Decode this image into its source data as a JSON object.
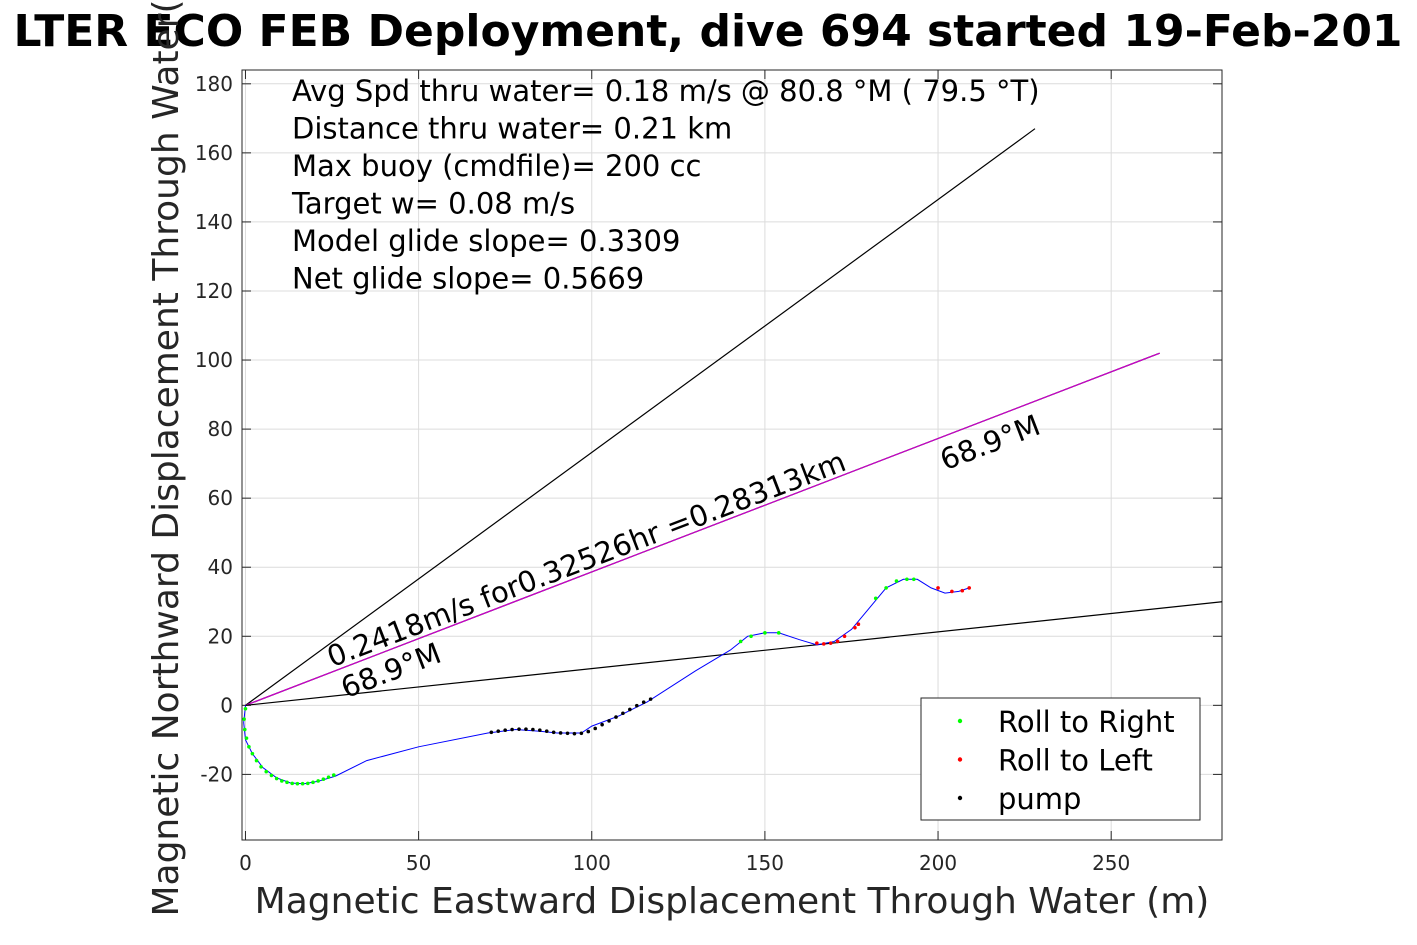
{
  "chart_data": {
    "type": "scatter",
    "title": "LTER ECO FEB Deployment, dive 694 started 19-Feb-201",
    "xlabel": "Magnetic Eastward Displacement Through Water (m)",
    "ylabel": "Magnetic Northward Displacement Through Water(",
    "xlim": [
      -1,
      282
    ],
    "ylim": [
      -39,
      184
    ],
    "x_ticks": [
      0,
      50,
      100,
      150,
      200,
      250
    ],
    "x_tick_labels": [
      "0",
      "50",
      "100",
      "150",
      "200",
      "250"
    ],
    "y_ticks": [
      -20,
      0,
      20,
      40,
      60,
      80,
      100,
      120,
      140,
      160,
      180
    ],
    "y_tick_labels": [
      "-20",
      "0",
      "20",
      "40",
      "60",
      "80",
      "100",
      "120",
      "140",
      "160",
      "180"
    ],
    "grid": true,
    "legend_position": "bottom-right",
    "info_text": [
      "Avg Spd thru water=  0.18 m/s @  80.8 °M ( 79.5 °T)",
      "Distance thru water=  0.21 km",
      "Max buoy (cmdfile)= 200 cc",
      "Target w= 0.08 m/s",
      "Model glide slope= 0.3309",
      "Net glide slope= 0.5669"
    ],
    "reference_lines": [
      {
        "x": [
          0,
          228
        ],
        "y": [
          0,
          167
        ],
        "color": "#000000"
      },
      {
        "x": [
          0,
          264
        ],
        "y": [
          0,
          102
        ],
        "color": "#000000"
      },
      {
        "x": [
          0,
          264
        ],
        "y": [
          0,
          102
        ],
        "color": "#cc00cc"
      },
      {
        "x": [
          0,
          282
        ],
        "y": [
          0,
          30
        ],
        "color": "#000000"
      }
    ],
    "annotations": [
      {
        "text": "0.2418m/s for0.32526hr =0.28313km",
        "x": 25,
        "y": 11,
        "angle_deg": -21
      },
      {
        "text": "68.9°M",
        "x": 29,
        "y": 2,
        "angle_deg": -21
      },
      {
        "text": "68.9°M",
        "x": 202,
        "y": 68,
        "angle_deg": -21
      }
    ],
    "track": {
      "color": "#0000ff",
      "x": [
        0,
        -0.5,
        0,
        2,
        5,
        9,
        13,
        17,
        21,
        26,
        35,
        50,
        70,
        78,
        85,
        90,
        97,
        100,
        108,
        116,
        130,
        140,
        145,
        150,
        154,
        160,
        165,
        170,
        175,
        180,
        185,
        190,
        194,
        198,
        202,
        206,
        209
      ],
      "y": [
        0,
        -5,
        -10,
        -14,
        -18,
        -21,
        -22.5,
        -22.7,
        -22,
        -20.5,
        -16,
        -12,
        -8,
        -7,
        -7.5,
        -8,
        -8,
        -6,
        -3,
        1,
        10,
        16,
        20,
        21,
        21,
        19,
        17.5,
        18.5,
        22,
        28,
        34,
        36.5,
        36.5,
        34,
        32.5,
        33,
        34
      ]
    },
    "series": [
      {
        "name": "Roll to Right",
        "color": "#00ff00",
        "x": [
          0,
          -0.4,
          -0.2,
          0.3,
          1,
          2,
          3.2,
          4.5,
          6,
          7.5,
          9,
          10.5,
          12,
          13.5,
          15,
          16.5,
          18,
          19.5,
          21,
          22.5,
          24,
          25.5,
          143,
          146,
          150,
          154,
          182,
          185,
          188,
          191,
          193
        ],
        "y": [
          -1,
          -4,
          -7,
          -9.5,
          -12,
          -14,
          -16,
          -17.8,
          -19.2,
          -20.3,
          -21.2,
          -21.9,
          -22.3,
          -22.6,
          -22.7,
          -22.7,
          -22.6,
          -22.3,
          -21.9,
          -21.4,
          -20.8,
          -20.2,
          18.5,
          20,
          21,
          21,
          31,
          34,
          36,
          36.5,
          36.5
        ]
      },
      {
        "name": "Roll to Left",
        "color": "#ff0000",
        "x": [
          165,
          167,
          169,
          171,
          173,
          176,
          177,
          200,
          204,
          207,
          209
        ],
        "y": [
          18,
          17.8,
          18,
          18.5,
          20,
          22.5,
          23.5,
          34,
          33,
          33.2,
          34
        ]
      },
      {
        "name": "pump",
        "color": "#000000",
        "x": [
          71,
          73,
          75,
          77,
          79,
          81,
          83,
          85,
          87,
          89,
          91,
          93,
          95,
          97,
          99,
          101,
          103,
          105,
          107,
          109,
          111,
          113,
          115,
          117
        ],
        "y": [
          -7.8,
          -7.5,
          -7.2,
          -7,
          -6.9,
          -6.9,
          -7,
          -7.2,
          -7.5,
          -7.8,
          -8,
          -8.1,
          -8.2,
          -8.1,
          -7.6,
          -6.7,
          -5.6,
          -4.5,
          -3.4,
          -2.3,
          -1.2,
          -0.1,
          0.9,
          1.8
        ]
      }
    ]
  }
}
